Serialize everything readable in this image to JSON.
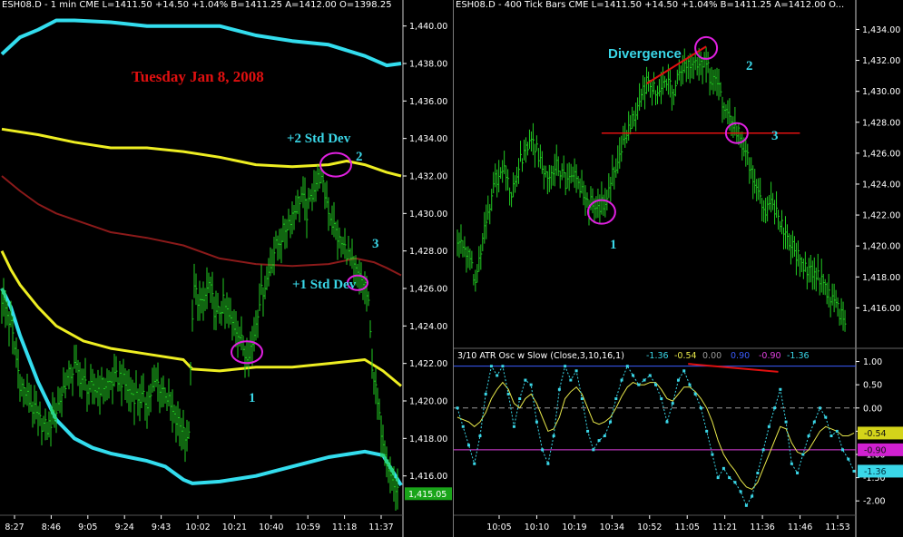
{
  "left": {
    "header": "ESH08.D - 1 min   CME  L=1411.50  +14.50  +1.04%   B=1411.25   A=1412.00   O=1398.25",
    "date_label": "Tuesday Jan 8, 2008",
    "label_2sd": "+2 Std Dev",
    "label_1sd": "+1 Std Dev",
    "num1": "1",
    "num2": "2",
    "num3": "3",
    "last_price": "1,415.05"
  },
  "right": {
    "header": "ESH08.D - 400 Tick Bars   CME  L=1411.50  +14.50  +1.04%   B=1411.25   A=1412.00   O...",
    "divergence": "Divergence",
    "num1": "1",
    "num2": "2",
    "num3": "3",
    "osc_header_prefix": "3/10 ATR Osc w Slow  (Close,3,10,16,1)",
    "osc_header_vals": [
      {
        "text": "-1.36",
        "color": "#3ad7e8"
      },
      {
        "text": "-0.54",
        "color": "#e8e84a"
      },
      {
        "text": "0.00",
        "color": "#999999"
      },
      {
        "text": "0.90",
        "color": "#3a5bff"
      },
      {
        "text": "-0.90",
        "color": "#e040e0"
      },
      {
        "text": "-1.36",
        "color": "#3ad7e8"
      }
    ]
  },
  "colors": {
    "price_bars": "#22cc22",
    "upper_band": "#33ddee",
    "plus2_band": "#eeee22",
    "mid_band": "#8b1a1a",
    "highlight_circle": "#e020e0",
    "annotation_red": "#e01010",
    "annotation_cyan": "#3ad7e8"
  },
  "chart_data": [
    {
      "type": "ohlc-bars",
      "instrument": "ESH08.D",
      "timeframe": "1 min",
      "title": "Tuesday Jan 8, 2008",
      "x_ticks": [
        "8:27",
        "8:46",
        "9:05",
        "9:24",
        "9:43",
        "10:02",
        "10:21",
        "10:40",
        "10:59",
        "11:18",
        "11:37"
      ],
      "ylim": [
        1414.0,
        1441.0
      ],
      "y_ticks": [
        "1,416.00",
        "1,418.00",
        "1,420.00",
        "1,422.00",
        "1,424.00",
        "1,426.00",
        "1,428.00",
        "1,430.00",
        "1,432.00",
        "1,434.00",
        "1,436.00",
        "1,438.00",
        "1,440.00"
      ],
      "y_values": [
        1416,
        1418,
        1420,
        1422,
        1424,
        1426,
        1428,
        1430,
        1432,
        1434,
        1436,
        1438,
        1440
      ],
      "last_value": 1415.05,
      "close_path_bars": [
        [
          0,
          1425.5
        ],
        [
          5,
          1424.0
        ],
        [
          10,
          1421.0
        ],
        [
          15,
          1420.0
        ],
        [
          20,
          1419.0
        ],
        [
          25,
          1418.5
        ],
        [
          30,
          1419.5
        ],
        [
          35,
          1421.0
        ],
        [
          40,
          1421.8
        ],
        [
          45,
          1421.0
        ],
        [
          50,
          1420.5
        ],
        [
          55,
          1420.8
        ],
        [
          60,
          1421.0
        ],
        [
          65,
          1421.3
        ],
        [
          70,
          1420.5
        ],
        [
          75,
          1420.2
        ],
        [
          80,
          1420.0
        ],
        [
          85,
          1421.0
        ],
        [
          90,
          1420.5
        ],
        [
          95,
          1419.0
        ],
        [
          100,
          1418.5
        ],
        [
          103,
          1418.0
        ],
        [
          104,
          1422.0
        ],
        [
          106,
          1426.0
        ],
        [
          110,
          1425.0
        ],
        [
          114,
          1426.2
        ],
        [
          118,
          1424.5
        ],
        [
          122,
          1425.2
        ],
        [
          126,
          1424.2
        ],
        [
          130,
          1423.8
        ],
        [
          134,
          1422.5
        ],
        [
          138,
          1423.0
        ],
        [
          142,
          1425.5
        ],
        [
          146,
          1426.5
        ],
        [
          150,
          1428.0
        ],
        [
          155,
          1429.0
        ],
        [
          160,
          1430.0
        ],
        [
          165,
          1431.0
        ],
        [
          168,
          1430.0
        ],
        [
          172,
          1431.5
        ],
        [
          175,
          1432.0
        ],
        [
          178,
          1431.0
        ],
        [
          182,
          1429.5
        ],
        [
          186,
          1428.5
        ],
        [
          190,
          1428.0
        ],
        [
          194,
          1427.0
        ],
        [
          197,
          1426.5
        ],
        [
          200,
          1426.2
        ],
        [
          202,
          1425.0
        ],
        [
          204,
          1422.0
        ],
        [
          206,
          1420.5
        ],
        [
          208,
          1419.0
        ],
        [
          211,
          1417.5
        ],
        [
          214,
          1416.0
        ],
        [
          218,
          1415.0
        ]
      ],
      "series": [
        {
          "name": "upper band",
          "points": [
            [
              0,
              1438.5
            ],
            [
              10,
              1439.4
            ],
            [
              20,
              1439.8
            ],
            [
              30,
              1440.3
            ],
            [
              40,
              1440.3
            ],
            [
              60,
              1440.2
            ],
            [
              80,
              1440.0
            ],
            [
              100,
              1440.0
            ],
            [
              120,
              1440.0
            ],
            [
              140,
              1439.5
            ],
            [
              160,
              1439.2
            ],
            [
              180,
              1439.0
            ],
            [
              200,
              1438.4
            ],
            [
              212,
              1437.9
            ],
            [
              220,
              1438.0
            ]
          ]
        },
        {
          "name": "+2 Std Dev",
          "points": [
            [
              0,
              1434.5
            ],
            [
              20,
              1434.2
            ],
            [
              40,
              1433.8
            ],
            [
              60,
              1433.5
            ],
            [
              80,
              1433.5
            ],
            [
              100,
              1433.3
            ],
            [
              120,
              1433.0
            ],
            [
              140,
              1432.6
            ],
            [
              160,
              1432.5
            ],
            [
              180,
              1432.6
            ],
            [
              190,
              1432.8
            ],
            [
              200,
              1432.6
            ],
            [
              212,
              1432.2
            ],
            [
              220,
              1432.0
            ]
          ]
        },
        {
          "name": "+1 Std Dev",
          "points": [
            [
              0,
              1432.0
            ],
            [
              10,
              1431.2
            ],
            [
              20,
              1430.5
            ],
            [
              30,
              1430.0
            ],
            [
              45,
              1429.5
            ],
            [
              60,
              1429.0
            ],
            [
              80,
              1428.7
            ],
            [
              100,
              1428.3
            ],
            [
              120,
              1427.6
            ],
            [
              140,
              1427.3
            ],
            [
              160,
              1427.2
            ],
            [
              180,
              1427.3
            ],
            [
              195,
              1427.6
            ],
            [
              205,
              1427.4
            ],
            [
              212,
              1427.1
            ],
            [
              220,
              1426.7
            ]
          ]
        },
        {
          "name": "lower band",
          "points": [
            [
              0,
              1428.0
            ],
            [
              5,
              1427.0
            ],
            [
              10,
              1426.2
            ],
            [
              20,
              1425.0
            ],
            [
              30,
              1424.0
            ],
            [
              45,
              1423.2
            ],
            [
              60,
              1422.8
            ],
            [
              80,
              1422.5
            ],
            [
              100,
              1422.2
            ],
            [
              105,
              1421.7
            ],
            [
              120,
              1421.6
            ],
            [
              140,
              1421.8
            ],
            [
              160,
              1421.8
            ],
            [
              180,
              1422.0
            ],
            [
              200,
              1422.2
            ],
            [
              210,
              1421.6
            ],
            [
              220,
              1420.8
            ]
          ]
        },
        {
          "name": "bottom band",
          "points": [
            [
              0,
              1426.0
            ],
            [
              5,
              1425.0
            ],
            [
              10,
              1423.5
            ],
            [
              20,
              1421.0
            ],
            [
              30,
              1419.0
            ],
            [
              40,
              1418.0
            ],
            [
              50,
              1417.5
            ],
            [
              60,
              1417.2
            ],
            [
              70,
              1417.0
            ],
            [
              80,
              1416.8
            ],
            [
              90,
              1416.5
            ],
            [
              100,
              1415.8
            ],
            [
              105,
              1415.6
            ],
            [
              120,
              1415.7
            ],
            [
              140,
              1416.0
            ],
            [
              160,
              1416.5
            ],
            [
              180,
              1417.0
            ],
            [
              200,
              1417.3
            ],
            [
              210,
              1417.1
            ],
            [
              220,
              1415.5
            ]
          ]
        }
      ],
      "annotations": [
        {
          "label": "1",
          "x": 135,
          "y": 1422.6
        },
        {
          "label": "2",
          "x": 184,
          "y": 1432.6
        },
        {
          "label": "3",
          "x": 196,
          "y": 1426.3
        }
      ]
    },
    {
      "type": "ohlc-bars",
      "instrument": "ESH08.D",
      "timeframe": "400 Tick Bars",
      "x_ticks": [
        "10:05",
        "10:10",
        "10:19",
        "10:34",
        "10:52",
        "11:05",
        "11:21",
        "11:36",
        "11:46",
        "11:53"
      ],
      "ylim": [
        1413.5,
        1435.2
      ],
      "y_ticks": [
        "1,416.00",
        "1,418.00",
        "1,420.00",
        "1,422.00",
        "1,424.00",
        "1,426.00",
        "1,428.00",
        "1,430.00",
        "1,432.00",
        "1,434.00"
      ],
      "y_values": [
        1416,
        1418,
        1420,
        1422,
        1424,
        1426,
        1428,
        1430,
        1432,
        1434
      ],
      "close_path_bars": [
        [
          0,
          1420.5
        ],
        [
          5,
          1419.5
        ],
        [
          10,
          1417.8
        ],
        [
          15,
          1421.0
        ],
        [
          20,
          1424.0
        ],
        [
          25,
          1425.0
        ],
        [
          30,
          1423.5
        ],
        [
          35,
          1425.5
        ],
        [
          40,
          1427.0
        ],
        [
          45,
          1426.0
        ],
        [
          50,
          1424.5
        ],
        [
          55,
          1425.5
        ],
        [
          60,
          1424.0
        ],
        [
          65,
          1424.5
        ],
        [
          70,
          1423.5
        ],
        [
          75,
          1422.5
        ],
        [
          78,
          1422.3
        ],
        [
          82,
          1423.0
        ],
        [
          86,
          1424.5
        ],
        [
          90,
          1426.0
        ],
        [
          95,
          1427.5
        ],
        [
          100,
          1429.0
        ],
        [
          105,
          1430.5
        ],
        [
          110,
          1430.0
        ],
        [
          115,
          1431.0
        ],
        [
          120,
          1430.0
        ],
        [
          125,
          1431.5
        ],
        [
          130,
          1432.0
        ],
        [
          134,
          1431.5
        ],
        [
          138,
          1432.0
        ],
        [
          140,
          1431.0
        ],
        [
          145,
          1430.0
        ],
        [
          150,
          1428.5
        ],
        [
          155,
          1427.5
        ],
        [
          160,
          1426.0
        ],
        [
          165,
          1424.0
        ],
        [
          170,
          1422.0
        ],
        [
          175,
          1422.8
        ],
        [
          180,
          1421.5
        ],
        [
          185,
          1420.0
        ],
        [
          190,
          1419.0
        ],
        [
          195,
          1418.5
        ],
        [
          200,
          1418.0
        ],
        [
          205,
          1417.0
        ],
        [
          210,
          1416.0
        ],
        [
          215,
          1415.0
        ]
      ],
      "trendlines": [
        {
          "name": "price divergence line",
          "points": [
            [
              105,
              1430.5
            ],
            [
              138,
              1432.9
            ]
          ]
        },
        {
          "name": "support line",
          "points": [
            [
              80,
              1427.3
            ],
            [
              190,
              1427.3
            ]
          ]
        }
      ],
      "annotations": [
        {
          "label": "1",
          "x": 80,
          "y": 1422.2
        },
        {
          "label": "2",
          "x": 138,
          "y": 1432.8
        },
        {
          "label": "3",
          "x": 155,
          "y": 1427.3
        }
      ]
    },
    {
      "type": "line",
      "title": "3/10 ATR Osc w Slow  (Close,3,10,16,1)",
      "ylim": [
        -2.25,
        1.05
      ],
      "y_ticks": [
        "-2.00",
        "-1.50",
        "-1.00",
        "-0.50",
        "0.00",
        "0.50",
        "1.00"
      ],
      "y_values": [
        -2.0,
        -1.5,
        -1.0,
        -0.5,
        0.0,
        0.5,
        1.0
      ],
      "reference_lines": [
        {
          "value": 0.9,
          "color": "#3a5bff"
        },
        {
          "value": 0.0,
          "color": "#999999"
        },
        {
          "value": -0.9,
          "color": "#e040e0"
        }
      ],
      "marker_labels": [
        {
          "text": "-0.54",
          "value": -0.54,
          "color": "#d4d41a"
        },
        {
          "text": "-0.90",
          "value": -0.9,
          "color": "#d020d0"
        },
        {
          "text": "-1.36",
          "value": -1.36,
          "color": "#3ad7e8"
        }
      ],
      "divergence_line": {
        "points": [
          [
            128,
            0.95
          ],
          [
            178,
            0.78
          ]
        ]
      },
      "series": [
        {
          "name": "ATR Osc",
          "values": [
            0.0,
            -0.4,
            -0.8,
            -1.2,
            -0.6,
            0.3,
            0.9,
            0.7,
            0.9,
            0.3,
            -0.4,
            0.2,
            0.6,
            0.5,
            -0.3,
            -0.9,
            -1.2,
            -0.6,
            0.4,
            0.9,
            0.6,
            0.8,
            0.2,
            -0.5,
            -0.9,
            -0.7,
            -0.6,
            -0.3,
            0.2,
            0.6,
            0.9,
            0.7,
            0.5,
            0.6,
            0.7,
            0.5,
            0.2,
            -0.3,
            0.1,
            0.6,
            0.8,
            0.5,
            0.3,
            0.0,
            -0.5,
            -1.0,
            -1.5,
            -1.3,
            -1.5,
            -1.6,
            -1.8,
            -2.1,
            -1.9,
            -1.4,
            -0.9,
            -0.4,
            0.0,
            0.4,
            -0.3,
            -1.2,
            -1.4,
            -1.0,
            -0.6,
            -0.3,
            0.0,
            -0.2,
            -0.6,
            -0.5,
            -0.9,
            -1.1,
            -1.36
          ]
        },
        {
          "name": "Slow",
          "values": [
            -0.2,
            -0.25,
            -0.3,
            -0.4,
            -0.3,
            -0.1,
            0.2,
            0.4,
            0.55,
            0.4,
            0.1,
            0.0,
            0.2,
            0.3,
            0.1,
            -0.2,
            -0.5,
            -0.45,
            -0.2,
            0.2,
            0.35,
            0.45,
            0.3,
            0.0,
            -0.3,
            -0.35,
            -0.3,
            -0.2,
            0.0,
            0.25,
            0.45,
            0.55,
            0.5,
            0.5,
            0.55,
            0.55,
            0.4,
            0.2,
            0.15,
            0.3,
            0.45,
            0.45,
            0.35,
            0.2,
            0.0,
            -0.3,
            -0.7,
            -1.0,
            -1.2,
            -1.35,
            -1.55,
            -1.7,
            -1.75,
            -1.6,
            -1.3,
            -1.0,
            -0.7,
            -0.4,
            -0.45,
            -0.75,
            -0.95,
            -1.0,
            -0.9,
            -0.7,
            -0.5,
            -0.4,
            -0.45,
            -0.5,
            -0.6,
            -0.6,
            -0.54
          ]
        }
      ]
    }
  ]
}
